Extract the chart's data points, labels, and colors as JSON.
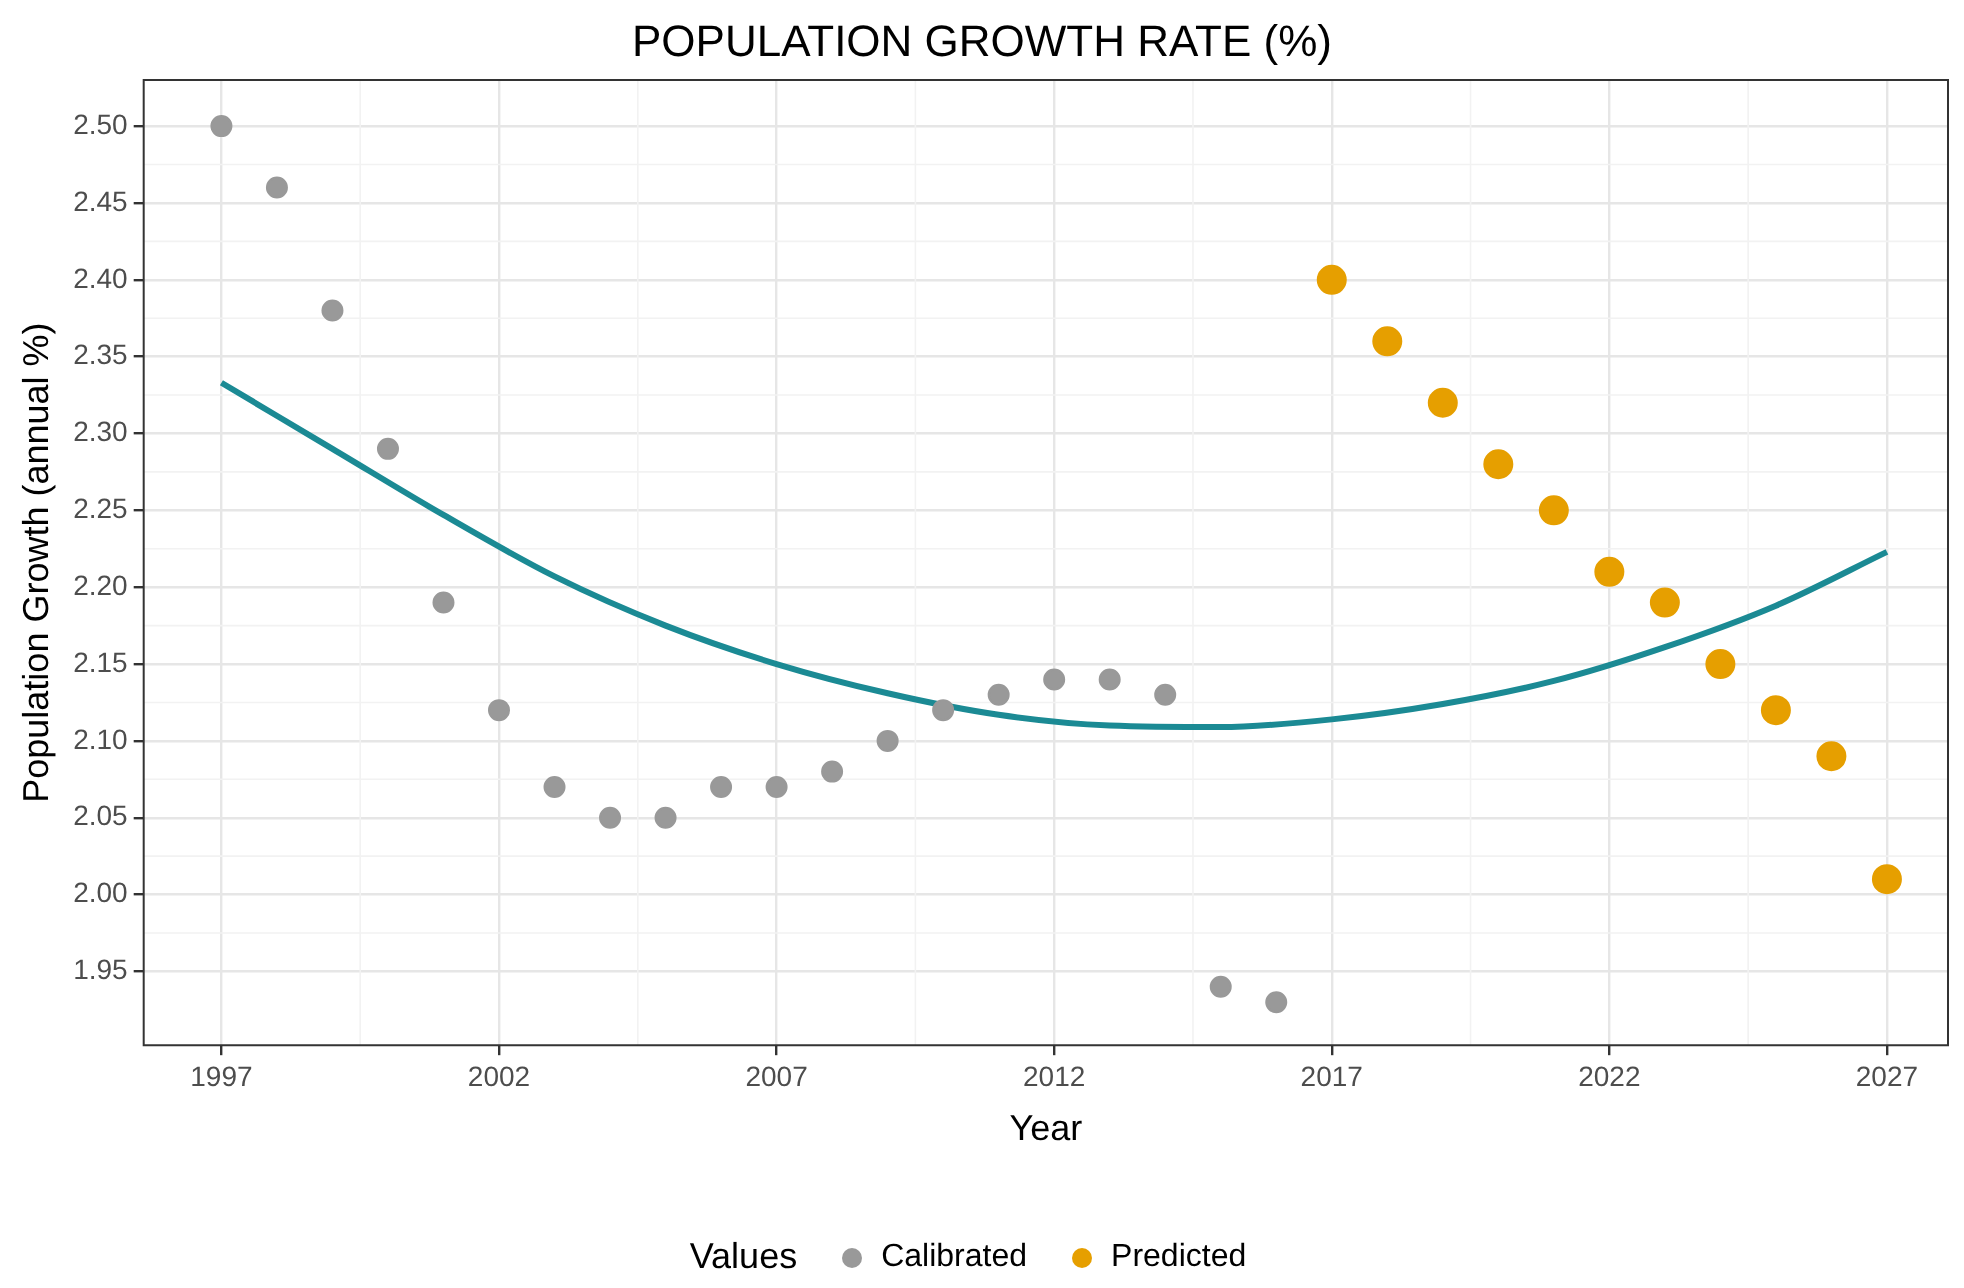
{
  "chart_data": {
    "type": "scatter",
    "title": "POPULATION GROWTH RATE (%)",
    "xlabel": "Year",
    "ylabel": "Population Growth (annual %)",
    "legend_title": "Values",
    "legend": "bottom",
    "grid": true,
    "marker": "circle",
    "xlim": [
      1995.6,
      2028.1
    ],
    "xticks": [
      1997,
      2002,
      2007,
      2012,
      2017,
      2022,
      2027
    ],
    "ylim": [
      1.902,
      2.53
    ],
    "yticks": [
      {
        "value": 1.95,
        "label": "1.95"
      },
      {
        "value": 2.0,
        "label": "2.00"
      },
      {
        "value": 2.05,
        "label": "2.05"
      },
      {
        "value": 2.1,
        "label": "2.10"
      },
      {
        "value": 2.15,
        "label": "2.15"
      },
      {
        "value": 2.2,
        "label": "2.20"
      },
      {
        "value": 2.25,
        "label": "2.25"
      },
      {
        "value": 2.3,
        "label": "2.30"
      },
      {
        "value": 2.35,
        "label": "2.35"
      },
      {
        "value": 2.4,
        "label": "2.40"
      },
      {
        "value": 2.45,
        "label": "2.45"
      },
      {
        "value": 2.5,
        "label": "2.50"
      }
    ],
    "series": [
      {
        "name": "Calibrated",
        "color": "#999999",
        "x": [
          1997,
          1998,
          1999,
          2000,
          2001,
          2002,
          2003,
          2004,
          2005,
          2006,
          2007,
          2008,
          2009,
          2010,
          2011,
          2012,
          2013,
          2014,
          2015,
          2016
        ],
        "values": [
          2.5,
          2.46,
          2.38,
          2.29,
          2.19,
          2.12,
          2.07,
          2.05,
          2.05,
          2.07,
          2.07,
          2.08,
          2.1,
          2.12,
          2.13,
          2.14,
          2.14,
          2.13,
          1.94,
          1.93
        ]
      },
      {
        "name": "Predicted",
        "color": "#e69f00",
        "x": [
          2017,
          2018,
          2019,
          2020,
          2021,
          2022,
          2023,
          2024,
          2025,
          2026,
          2027
        ],
        "values": [
          2.4,
          2.36,
          2.32,
          2.28,
          2.25,
          2.21,
          2.19,
          2.15,
          2.12,
          2.09,
          2.01
        ]
      },
      {
        "type": "line",
        "color": "#1b8a94",
        "marker": "none",
        "x": [
          1997,
          1999,
          2001,
          2003,
          2005,
          2007,
          2009,
          2011,
          2013,
          2015,
          2017,
          2019,
          2021,
          2023,
          2025,
          2027
        ],
        "values": [
          2.333,
          2.29,
          2.247,
          2.207,
          2.175,
          2.15,
          2.131,
          2.117,
          2.11,
          2.109,
          2.114,
          2.124,
          2.139,
          2.161,
          2.188,
          2.223
        ]
      }
    ]
  }
}
